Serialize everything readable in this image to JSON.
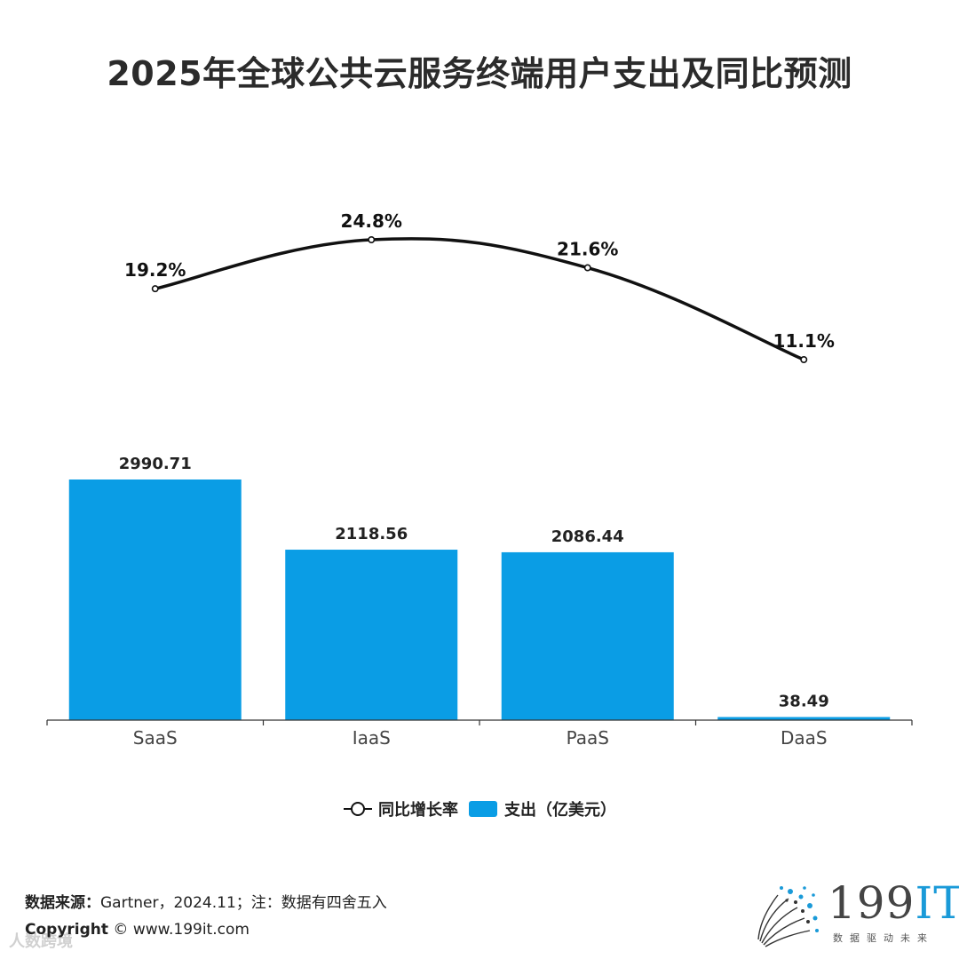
{
  "chart_data": {
    "type": "bar+line",
    "title": "2025年全球公共云服务终端用户支出及同比预测",
    "categories": [
      "SaaS",
      "IaaS",
      "PaaS",
      "DaaS"
    ],
    "series": [
      {
        "name": "支出（亿美元）",
        "type": "bar",
        "values": [
          2990.71,
          2118.56,
          2086.44,
          38.49
        ],
        "labels": [
          "2990.71",
          "2118.56",
          "2086.44",
          "38.49"
        ],
        "color": "#0a9de5"
      },
      {
        "name": "同比增长率",
        "type": "line",
        "values": [
          19.2,
          24.8,
          21.6,
          11.1
        ],
        "labels": [
          "19.2%",
          "24.8%",
          "21.6%",
          "11.1%"
        ],
        "color": "#111111"
      }
    ],
    "bar_ylim": [
      0,
      3000
    ],
    "line_ylim": [
      0,
      30
    ],
    "legend_position": "bottom-center",
    "grid": false
  },
  "legend": {
    "line_label": "同比增长率",
    "bar_label": "支出（亿美元）"
  },
  "footer": {
    "source_label": "数据来源：",
    "source_text": "Gartner，2024.11；注：数据有四舍五入",
    "copyright_label": "Copyright",
    "copyright_text": "©  www.199it.com"
  },
  "watermark": "人数跨境",
  "logo": {
    "number": "199",
    "suffix": "IT",
    "tagline": "数据驱动未来",
    "accent_color": "#1a9ad8"
  }
}
